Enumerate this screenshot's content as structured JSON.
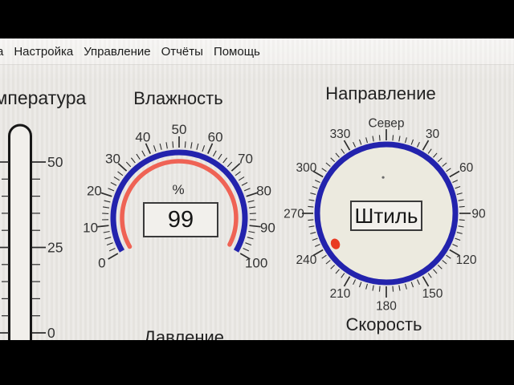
{
  "menu": {
    "partial_item": "а",
    "items": [
      "Настройка",
      "Управление",
      "Отчёты",
      "Помощь"
    ]
  },
  "panels": {
    "temperature": {
      "title": "Температура",
      "scale_labels": [
        "50",
        "25",
        "0"
      ]
    },
    "humidity": {
      "title": "Влажность",
      "unit": "%",
      "value": "99",
      "gauge": {
        "type": "gauge",
        "min": 0,
        "max": 100,
        "start_angle": -120,
        "end_angle": 120,
        "minor_step": 2,
        "major_step": 10,
        "tick_labels": [
          0,
          10,
          20,
          30,
          40,
          50,
          60,
          70,
          80,
          90,
          100
        ],
        "value": 99
      }
    },
    "direction": {
      "title": "Направление",
      "value": "Штиль",
      "north_label": "Север",
      "compass": {
        "type": "compass",
        "minor_step": 5,
        "major_step": 30,
        "tick_labels": [
          30,
          60,
          90,
          120,
          150,
          180,
          210,
          240,
          270,
          300,
          330
        ],
        "marker_bearing": 239
      }
    },
    "pressure": {
      "title": "Давление"
    },
    "speed": {
      "title": "Скорость"
    }
  },
  "colors": {
    "arc_blue": "#2323ad",
    "arc_red": "#ef6355",
    "marker_red": "#e93a22",
    "tick": "#2e2e2e",
    "label": "#333333",
    "screen_bg": "#ebe9e5",
    "letterbox": "#000000"
  }
}
